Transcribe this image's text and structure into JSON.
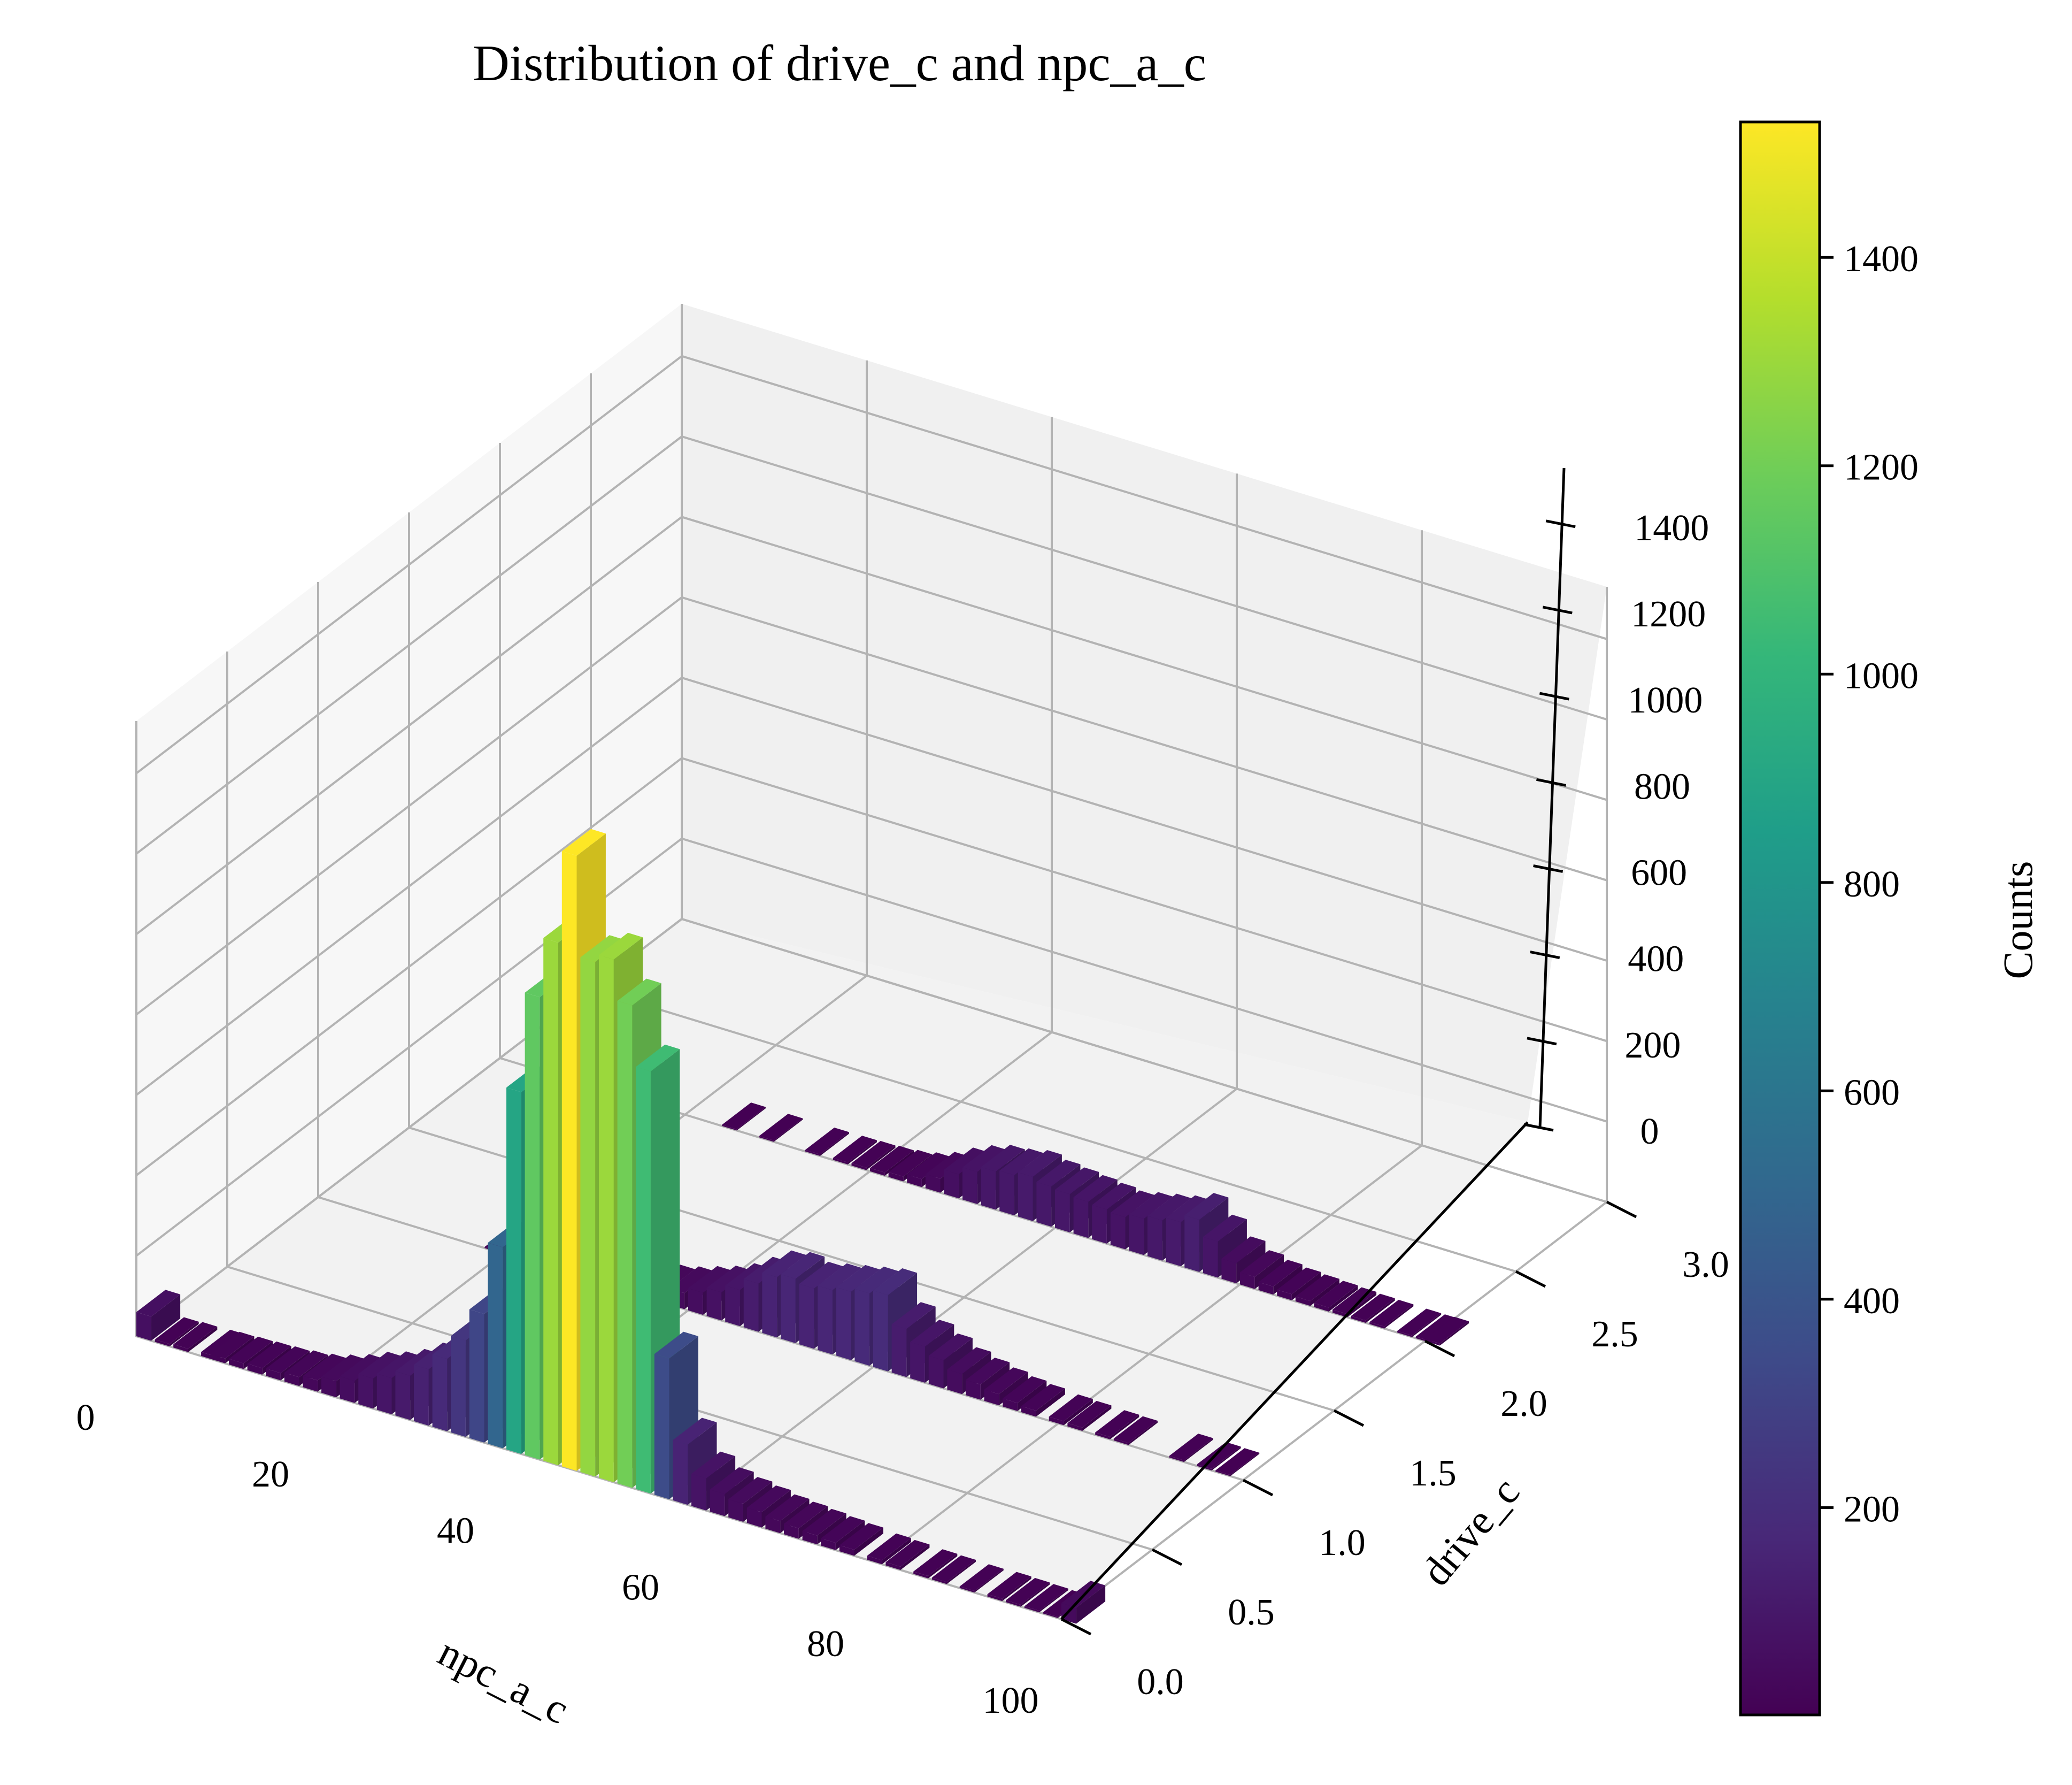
{
  "chart_data": {
    "type": "bar3d",
    "title": "Distribution of drive_c and npc_a_c",
    "xlabel": "npc_a_c",
    "ylabel": "drive_c",
    "zlabel": "",
    "xlim": [
      0,
      100
    ],
    "ylim": [
      0,
      3
    ],
    "zlim": [
      0,
      1530
    ],
    "x_ticks": [
      "0",
      "20",
      "40",
      "60",
      "80",
      "100"
    ],
    "y_ticks": [
      "0.0",
      "0.5",
      "1.0",
      "1.5",
      "2.0",
      "2.5",
      "3.0"
    ],
    "z_ticks": [
      "0",
      "200",
      "400",
      "600",
      "800",
      "1000",
      "1200",
      "1400"
    ],
    "grid": true,
    "colormap": "viridis",
    "colorbar": {
      "label": "Counts",
      "min": 1,
      "max": 1530,
      "ticks": [
        "200",
        "400",
        "600",
        "800",
        "1000",
        "1200",
        "1400"
      ]
    },
    "series": [
      {
        "drive_c": 0,
        "bins": [
          {
            "x": 0,
            "count": 60
          },
          {
            "x": 2,
            "count": 6
          },
          {
            "x": 4,
            "count": 8
          },
          {
            "x": 7,
            "count": 10
          },
          {
            "x": 8,
            "count": 12
          },
          {
            "x": 10,
            "count": 14
          },
          {
            "x": 12,
            "count": 16
          },
          {
            "x": 14,
            "count": 18
          },
          {
            "x": 16,
            "count": 22
          },
          {
            "x": 18,
            "count": 28
          },
          {
            "x": 20,
            "count": 40
          },
          {
            "x": 22,
            "count": 55
          },
          {
            "x": 24,
            "count": 75
          },
          {
            "x": 26,
            "count": 90
          },
          {
            "x": 28,
            "count": 110
          },
          {
            "x": 30,
            "count": 140
          },
          {
            "x": 32,
            "count": 180
          },
          {
            "x": 34,
            "count": 240
          },
          {
            "x": 36,
            "count": 320
          },
          {
            "x": 38,
            "count": 500
          },
          {
            "x": 40,
            "count": 900
          },
          {
            "x": 42,
            "count": 1150
          },
          {
            "x": 44,
            "count": 1300
          },
          {
            "x": 46,
            "count": 1530
          },
          {
            "x": 48,
            "count": 1280
          },
          {
            "x": 50,
            "count": 1300
          },
          {
            "x": 52,
            "count": 1200
          },
          {
            "x": 54,
            "count": 1050
          },
          {
            "x": 56,
            "count": 350
          },
          {
            "x": 58,
            "count": 150
          },
          {
            "x": 60,
            "count": 80
          },
          {
            "x": 62,
            "count": 55
          },
          {
            "x": 64,
            "count": 45
          },
          {
            "x": 66,
            "count": 38
          },
          {
            "x": 68,
            "count": 30
          },
          {
            "x": 70,
            "count": 26
          },
          {
            "x": 72,
            "count": 22
          },
          {
            "x": 74,
            "count": 18
          },
          {
            "x": 76,
            "count": 15
          },
          {
            "x": 79,
            "count": 10
          },
          {
            "x": 81,
            "count": 8
          },
          {
            "x": 84,
            "count": 6
          },
          {
            "x": 86,
            "count": 5
          },
          {
            "x": 89,
            "count": 4
          },
          {
            "x": 92,
            "count": 6
          },
          {
            "x": 94,
            "count": 5
          },
          {
            "x": 96,
            "count": 4
          },
          {
            "x": 98,
            "count": 3
          },
          {
            "x": 100,
            "count": 40
          }
        ]
      },
      {
        "drive_c": 1,
        "bins": [
          {
            "x": 18,
            "count": 3
          },
          {
            "x": 22,
            "count": 4
          },
          {
            "x": 25,
            "count": 5
          },
          {
            "x": 27,
            "count": 8
          },
          {
            "x": 28,
            "count": 10
          },
          {
            "x": 30,
            "count": 14
          },
          {
            "x": 32,
            "count": 18
          },
          {
            "x": 34,
            "count": 24
          },
          {
            "x": 36,
            "count": 30
          },
          {
            "x": 38,
            "count": 40
          },
          {
            "x": 40,
            "count": 55
          },
          {
            "x": 42,
            "count": 70
          },
          {
            "x": 44,
            "count": 90
          },
          {
            "x": 46,
            "count": 120
          },
          {
            "x": 48,
            "count": 150
          },
          {
            "x": 50,
            "count": 160
          },
          {
            "x": 52,
            "count": 150
          },
          {
            "x": 54,
            "count": 160
          },
          {
            "x": 56,
            "count": 170
          },
          {
            "x": 58,
            "count": 180
          },
          {
            "x": 60,
            "count": 190
          },
          {
            "x": 62,
            "count": 120
          },
          {
            "x": 64,
            "count": 90
          },
          {
            "x": 66,
            "count": 70
          },
          {
            "x": 68,
            "count": 50
          },
          {
            "x": 70,
            "count": 38
          },
          {
            "x": 72,
            "count": 28
          },
          {
            "x": 74,
            "count": 20
          },
          {
            "x": 76,
            "count": 15
          },
          {
            "x": 79,
            "count": 10
          },
          {
            "x": 81,
            "count": 8
          },
          {
            "x": 84,
            "count": 6
          },
          {
            "x": 86,
            "count": 5
          },
          {
            "x": 92,
            "count": 4
          },
          {
            "x": 95,
            "count": 4
          },
          {
            "x": 97,
            "count": 3
          }
        ]
      },
      {
        "drive_c": 2,
        "bins": [
          {
            "x": 24,
            "count": 3
          },
          {
            "x": 28,
            "count": 3
          },
          {
            "x": 33,
            "count": 4
          },
          {
            "x": 36,
            "count": 5
          },
          {
            "x": 38,
            "count": 6
          },
          {
            "x": 40,
            "count": 8
          },
          {
            "x": 42,
            "count": 12
          },
          {
            "x": 44,
            "count": 20
          },
          {
            "x": 46,
            "count": 35
          },
          {
            "x": 48,
            "count": 60
          },
          {
            "x": 50,
            "count": 80
          },
          {
            "x": 52,
            "count": 95
          },
          {
            "x": 54,
            "count": 100
          },
          {
            "x": 56,
            "count": 110
          },
          {
            "x": 58,
            "count": 100
          },
          {
            "x": 60,
            "count": 95
          },
          {
            "x": 62,
            "count": 90
          },
          {
            "x": 64,
            "count": 85
          },
          {
            "x": 66,
            "count": 80
          },
          {
            "x": 68,
            "count": 90
          },
          {
            "x": 70,
            "count": 100
          },
          {
            "x": 72,
            "count": 110
          },
          {
            "x": 74,
            "count": 130
          },
          {
            "x": 76,
            "count": 90
          },
          {
            "x": 78,
            "count": 50
          },
          {
            "x": 80,
            "count": 30
          },
          {
            "x": 82,
            "count": 20
          },
          {
            "x": 84,
            "count": 15
          },
          {
            "x": 86,
            "count": 12
          },
          {
            "x": 88,
            "count": 10
          },
          {
            "x": 90,
            "count": 8
          },
          {
            "x": 92,
            "count": 6
          },
          {
            "x": 94,
            "count": 5
          },
          {
            "x": 97,
            "count": 4
          },
          {
            "x": 99,
            "count": 4
          },
          {
            "x": 100,
            "count": 5
          }
        ]
      }
    ]
  }
}
